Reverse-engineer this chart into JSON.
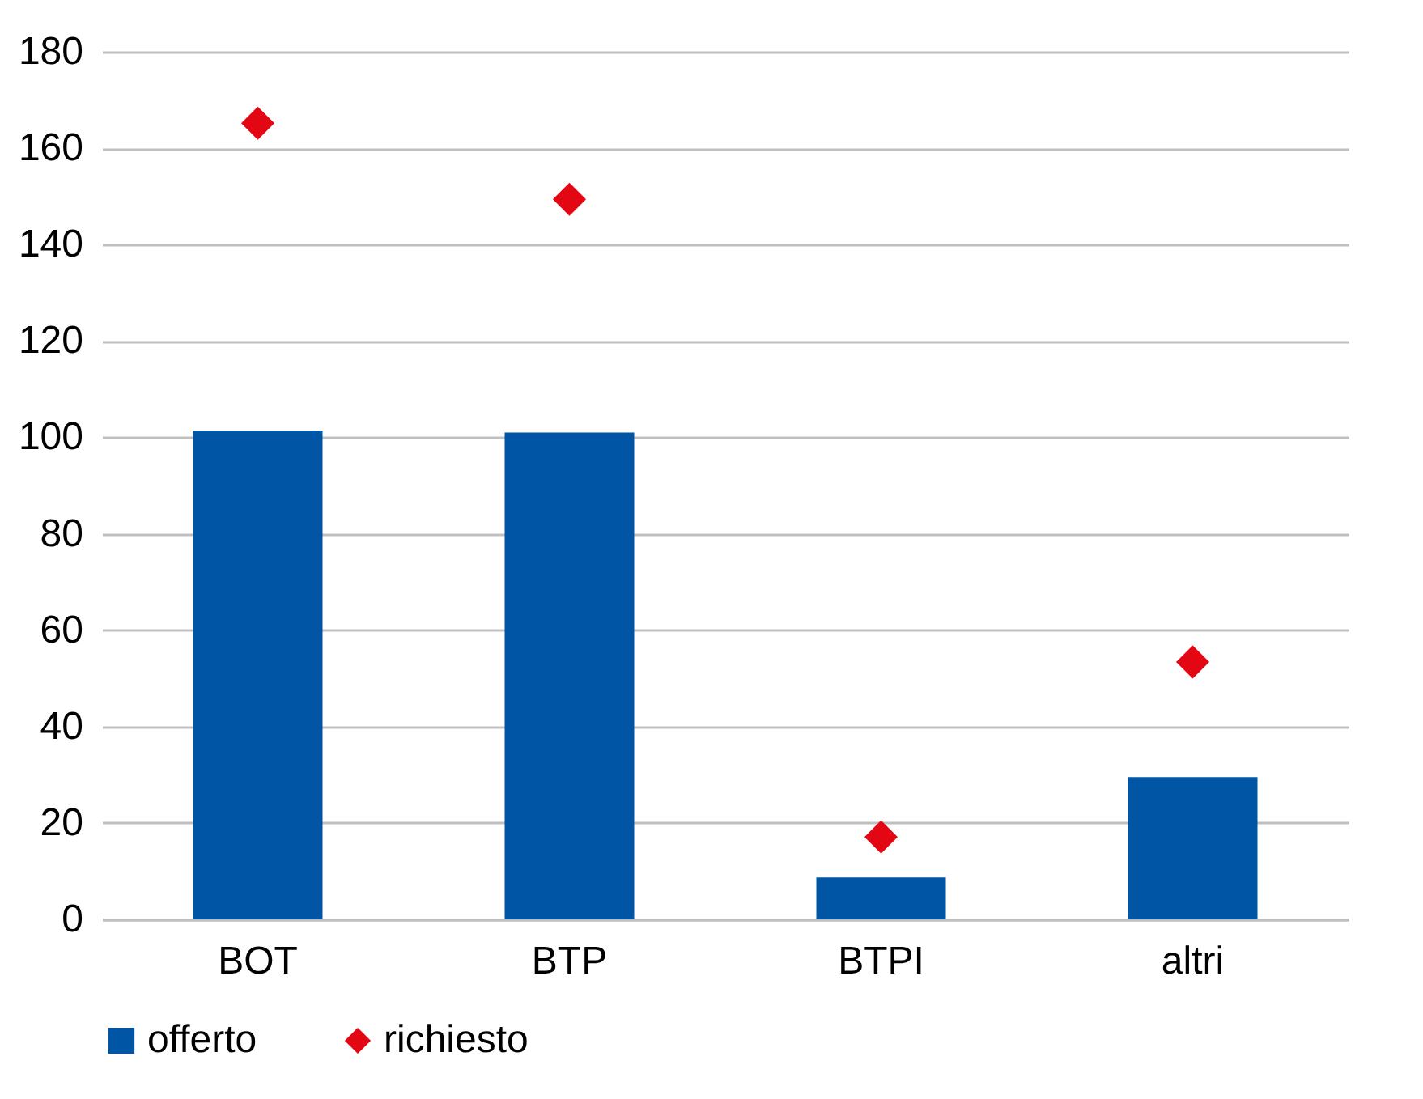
{
  "chart_data": {
    "type": "bar",
    "categories": [
      "BOT",
      "BTP",
      "BTPI",
      "altri"
    ],
    "series": [
      {
        "name": "offerto",
        "color": "#0055a4",
        "values": [
          101.4,
          101,
          8.7,
          29.5
        ]
      },
      {
        "name": "richiesto",
        "type": "scatter",
        "marker": "diamond",
        "color": "#e30613",
        "values": [
          165.2,
          149.4,
          17.1,
          53.4
        ]
      }
    ],
    "ylim": [
      0,
      180
    ],
    "yticks": [
      0,
      20,
      40,
      60,
      80,
      100,
      120,
      140,
      160,
      180
    ],
    "grid": "y",
    "legend": "bottom"
  }
}
